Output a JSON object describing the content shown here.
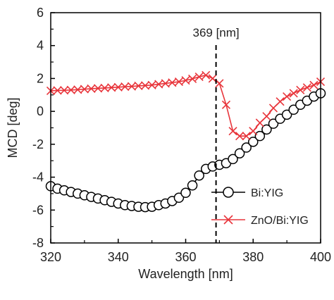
{
  "chart_data": {
    "type": "line",
    "xlabel": "Wavelength [nm]",
    "ylabel": "MCD [deg]",
    "xlim": [
      320,
      400
    ],
    "ylim": [
      -8,
      6
    ],
    "xticks": [
      "320",
      "340",
      "360",
      "380",
      "400"
    ],
    "yticks": [
      "6",
      "4",
      "2",
      "0",
      "-2",
      "-4",
      "-6",
      "-8"
    ],
    "annotation": {
      "x": 369,
      "text": "369 [nm]"
    },
    "legend_position": "bottom-right",
    "series": [
      {
        "name": "Bi:YIG",
        "color": "#000000",
        "marker": "circle",
        "x": [
          320,
          322,
          324,
          326,
          328,
          330,
          332,
          334,
          336,
          338,
          340,
          342,
          344,
          346,
          348,
          350,
          352,
          354,
          356,
          358,
          360,
          362,
          364,
          366,
          368,
          370,
          372,
          374,
          376,
          378,
          380,
          382,
          384,
          386,
          388,
          390,
          392,
          394,
          396,
          398,
          400
        ],
        "y": [
          -4.55,
          -4.7,
          -4.8,
          -4.9,
          -5.0,
          -5.1,
          -5.2,
          -5.3,
          -5.4,
          -5.5,
          -5.6,
          -5.7,
          -5.75,
          -5.8,
          -5.82,
          -5.8,
          -5.7,
          -5.6,
          -5.45,
          -5.25,
          -4.95,
          -4.5,
          -3.9,
          -3.5,
          -3.35,
          -3.25,
          -3.15,
          -2.9,
          -2.55,
          -2.2,
          -1.85,
          -1.5,
          -1.1,
          -0.75,
          -0.45,
          -0.2,
          0.1,
          0.4,
          0.65,
          0.9,
          1.1
        ]
      },
      {
        "name": "ZnO/Bi:YIG",
        "color": "#e8353b",
        "marker": "x",
        "x": [
          320,
          322,
          324,
          326,
          328,
          330,
          332,
          334,
          336,
          338,
          340,
          342,
          344,
          346,
          348,
          350,
          352,
          354,
          356,
          358,
          360,
          362,
          364,
          366,
          368,
          370,
          372,
          374,
          376,
          378,
          380,
          382,
          384,
          386,
          388,
          390,
          392,
          394,
          396,
          398,
          400
        ],
        "y": [
          1.25,
          1.27,
          1.28,
          1.3,
          1.32,
          1.35,
          1.38,
          1.4,
          1.42,
          1.45,
          1.47,
          1.5,
          1.52,
          1.55,
          1.57,
          1.6,
          1.65,
          1.7,
          1.75,
          1.8,
          1.88,
          1.98,
          2.1,
          2.2,
          2.0,
          1.7,
          0.4,
          -1.2,
          -1.5,
          -1.5,
          -1.2,
          -0.7,
          -0.3,
          0.2,
          0.6,
          0.9,
          1.1,
          1.3,
          1.45,
          1.6,
          1.8
        ]
      }
    ]
  }
}
